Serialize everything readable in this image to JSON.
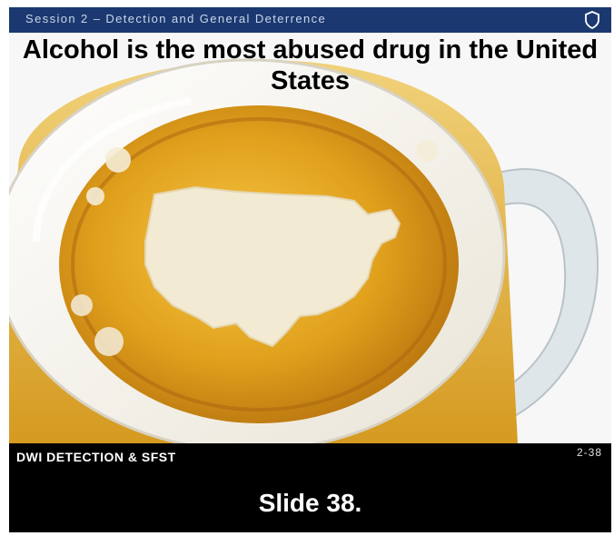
{
  "header": {
    "session_title": "Session 2 – Detection and General Deterrence",
    "icon": "shield-icon"
  },
  "slide": {
    "headline": "Alcohol is the most abused drug in the United States",
    "image": "beer-mug-foam-us-map",
    "footer_label": "DWI DETECTION & SFST",
    "slide_number": "2-38"
  },
  "caption": {
    "text": "Slide 38."
  },
  "colors": {
    "header_bg": "#1b3970",
    "beer": "#e2a21a",
    "foam": "#f3ead3",
    "frame": "#000000"
  }
}
